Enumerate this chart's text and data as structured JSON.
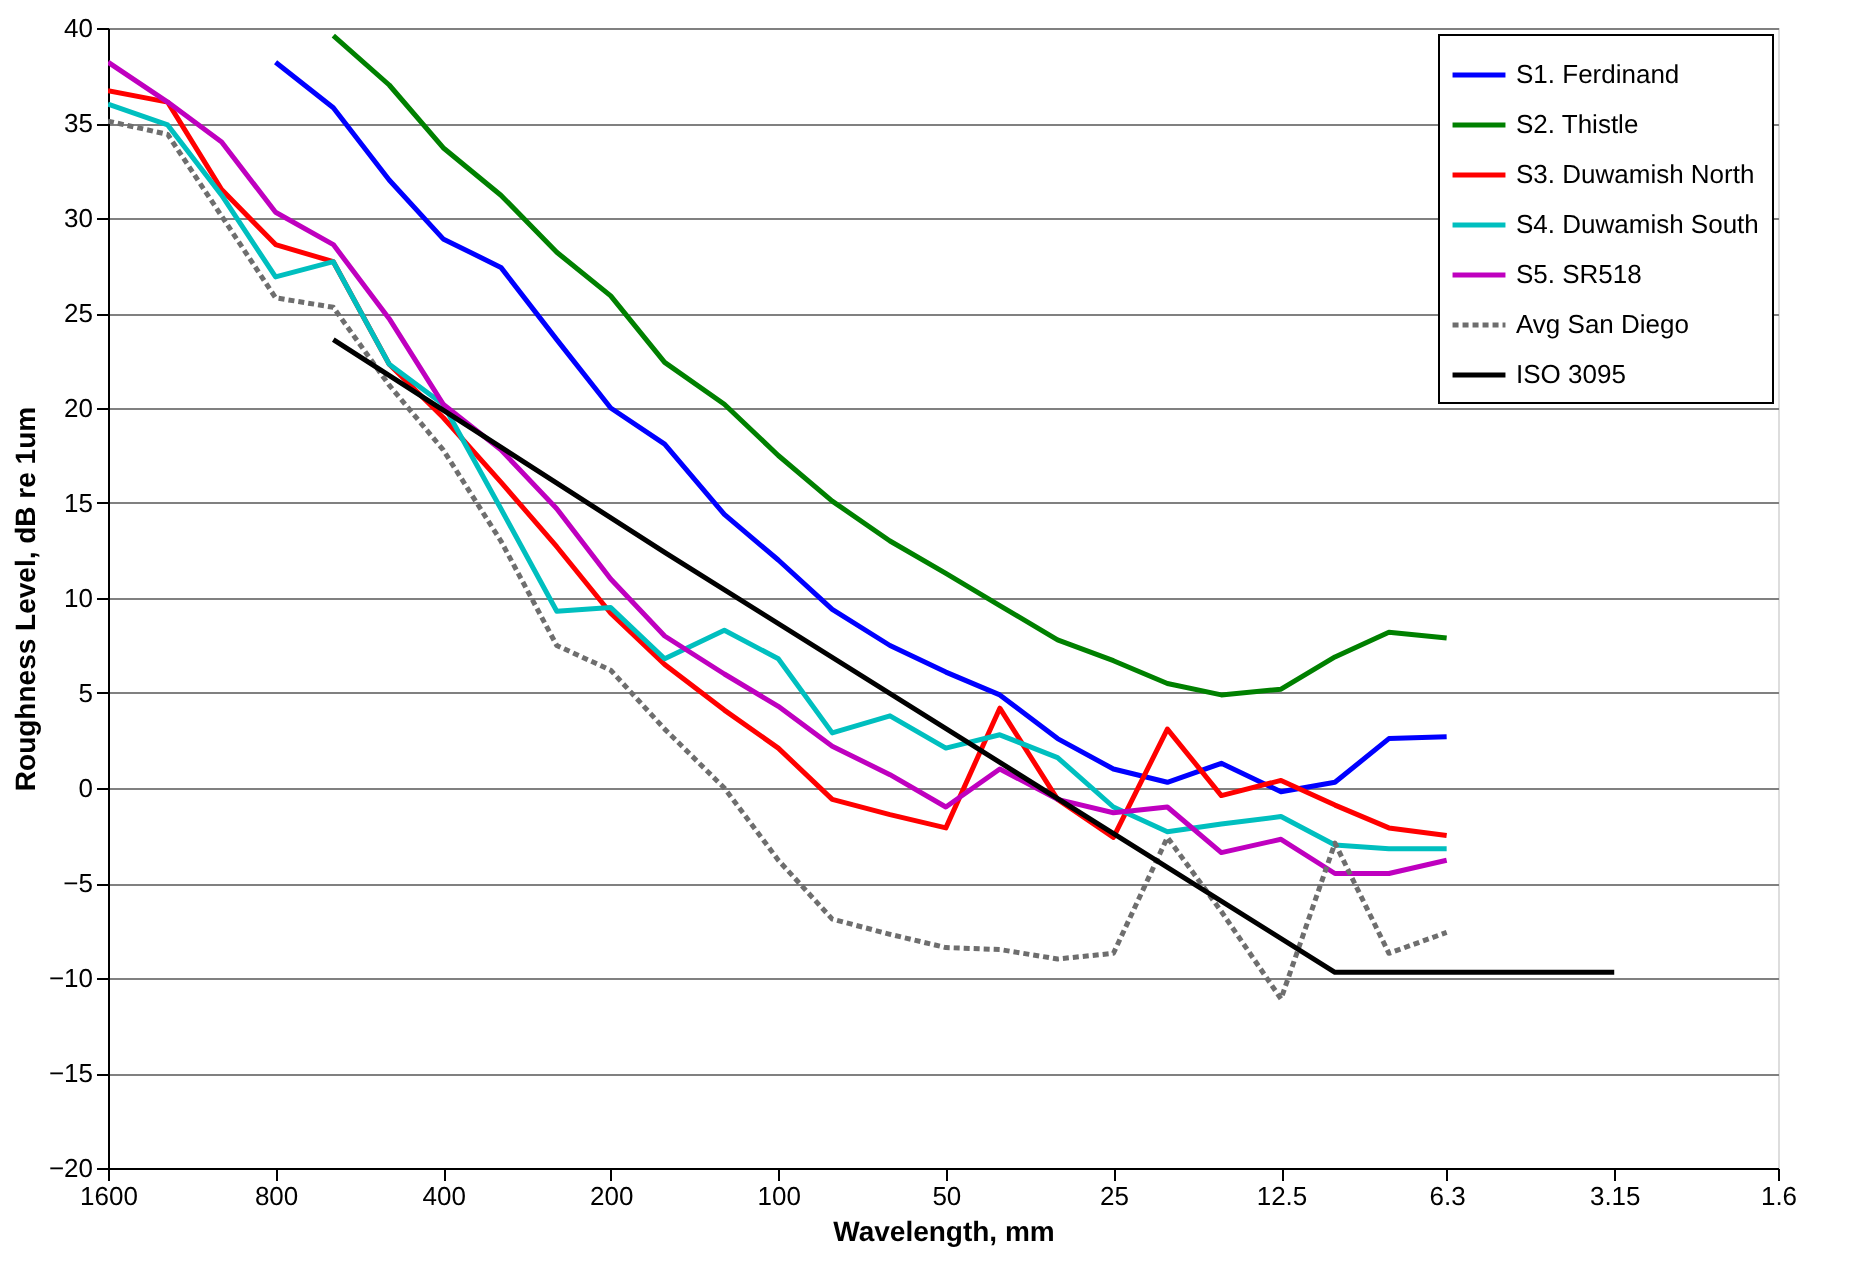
{
  "chart_data": {
    "type": "line",
    "xlabel": "Wavelength, mm",
    "ylabel": "Roughness Level, dB re 1um",
    "x": [
      1600,
      1250,
      1000,
      800,
      630,
      500,
      400,
      315,
      250,
      200,
      160,
      125,
      100,
      80,
      63,
      50,
      40,
      31.5,
      25,
      20,
      16,
      12.5,
      10,
      8,
      6.3
    ],
    "series": [
      {
        "name": "S1. Ferdinand",
        "color": "#0000ff",
        "values": [
          null,
          null,
          null,
          38.2,
          35.8,
          32.0,
          28.9,
          27.4,
          23.6,
          20.0,
          18.1,
          14.4,
          12.0,
          9.4,
          7.5,
          6.1,
          4.9,
          2.6,
          1.0,
          0.3,
          1.3,
          -0.2,
          0.3,
          2.6,
          2.7
        ]
      },
      {
        "name": "S2. Thistle",
        "color": "#008000",
        "values": [
          null,
          null,
          null,
          null,
          39.6,
          37.0,
          33.7,
          31.2,
          28.2,
          25.9,
          22.4,
          20.2,
          17.5,
          15.1,
          13.0,
          11.3,
          9.6,
          7.8,
          6.7,
          5.5,
          4.9,
          5.2,
          6.9,
          8.2,
          7.9
        ]
      },
      {
        "name": "S3. Duwamish North",
        "color": "#ff0000",
        "values": [
          36.7,
          36.1,
          31.5,
          28.6,
          27.7,
          22.3,
          19.5,
          16.1,
          12.7,
          9.2,
          6.5,
          4.1,
          2.1,
          -0.6,
          -1.4,
          -2.1,
          4.2,
          -0.6,
          -2.6,
          3.1,
          -0.4,
          0.4,
          -0.9,
          -2.1,
          -2.5
        ]
      },
      {
        "name": "S4. Duwamish South",
        "color": "#00bfbf",
        "values": [
          36.0,
          34.9,
          31.2,
          26.9,
          27.7,
          22.3,
          20.2,
          14.7,
          9.3,
          9.5,
          6.8,
          8.3,
          6.8,
          2.9,
          3.8,
          2.1,
          2.8,
          1.6,
          -1.0,
          -2.3,
          -1.9,
          -1.5,
          -3.0,
          -3.2,
          -3.2
        ]
      },
      {
        "name": "S5. SR518",
        "color": "#bf00bf",
        "values": [
          38.2,
          36.1,
          34.0,
          30.3,
          28.6,
          24.7,
          20.2,
          17.8,
          14.7,
          11.0,
          8.0,
          6.0,
          4.3,
          2.2,
          0.7,
          -1.0,
          1.0,
          -0.6,
          -1.3,
          -1.0,
          -3.4,
          -2.7,
          -4.5,
          -4.5,
          -3.8
        ]
      },
      {
        "name": "Avg San Diego",
        "color": "#6e6e6e",
        "line_style": "dotted",
        "values": [
          35.1,
          34.4,
          30.1,
          25.8,
          25.3,
          21.2,
          17.8,
          13.0,
          7.5,
          6.2,
          3.1,
          0.0,
          -3.8,
          -6.9,
          -7.7,
          -8.4,
          -8.5,
          -9.0,
          -8.7,
          -2.6,
          -6.5,
          -11.1,
          -2.9,
          -8.7,
          -7.6
        ]
      },
      {
        "name": "ISO 3095",
        "color": "#000000",
        "x": [
          630,
          160,
          10,
          3.15
        ],
        "values": [
          23.6,
          12.4,
          -9.7,
          -9.7
        ]
      }
    ],
    "log": "x",
    "xlim": [
      1600,
      1.6
    ],
    "xticks": [
      1600,
      800,
      400,
      200,
      100,
      50,
      25,
      12.5,
      6.3,
      3.15,
      1.6
    ],
    "ylim": [
      -20,
      40
    ],
    "yticks": [
      -20,
      -15,
      -10,
      -5,
      0,
      5,
      10,
      15,
      20,
      25,
      30,
      35,
      40
    ],
    "grid": "y",
    "legend": "top right",
    "marker": "none",
    "line_style": "solid"
  }
}
